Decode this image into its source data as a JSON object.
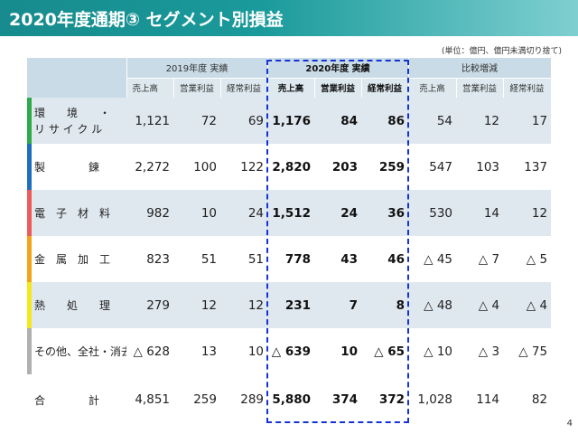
{
  "header": {
    "title": "2020年度通期③ セグメント別損益"
  },
  "unit_note": "(単位：億円、億円未満切り捨て)",
  "table": {
    "groups": [
      "2019年度 実績",
      "2020年度 実績",
      "比較増減"
    ],
    "sub_headers": [
      "売上高",
      "営業利益",
      "経常利益"
    ],
    "rows": [
      {
        "label_line1": "環　　境　　・",
        "label_line2": "リ サ イ ク ル",
        "color": "#2eaa4a",
        "prev": [
          "1,121",
          "72",
          "69"
        ],
        "cur": [
          "1,176",
          "84",
          "86"
        ],
        "diff": [
          "54",
          "12",
          "17"
        ]
      },
      {
        "label": "製　　　　鍊",
        "color": "#1f6fbf",
        "prev": [
          "2,272",
          "100",
          "122"
        ],
        "cur": [
          "2,820",
          "203",
          "259"
        ],
        "diff": [
          "547",
          "103",
          "137"
        ]
      },
      {
        "label": "電　子　材　料",
        "color": "#ee5a5a",
        "prev": [
          "982",
          "10",
          "24"
        ],
        "cur": [
          "1,512",
          "24",
          "36"
        ],
        "diff": [
          "530",
          "14",
          "12"
        ]
      },
      {
        "label": "金　属　加　工",
        "color": "#f2a31b",
        "prev": [
          "823",
          "51",
          "51"
        ],
        "cur": [
          "778",
          "43",
          "46"
        ],
        "diff": [
          "△ 45",
          "△ 7",
          "△ 5"
        ]
      },
      {
        "label": "熱　　処　　理",
        "color": "#f2e81b",
        "prev": [
          "279",
          "12",
          "12"
        ],
        "cur": [
          "231",
          "7",
          "8"
        ],
        "diff": [
          "△ 48",
          "△ 4",
          "△ 4"
        ]
      },
      {
        "label": "その他、全社・消去",
        "color": "#b0b0b0",
        "prev": [
          "△ 628",
          "13",
          "10"
        ],
        "cur": [
          "△ 639",
          "10",
          "△ 65"
        ],
        "diff": [
          "△ 10",
          "△ 3",
          "△ 75"
        ]
      },
      {
        "label": "合　　　　計",
        "color": "",
        "prev": [
          "4,851",
          "259",
          "289"
        ],
        "cur": [
          "5,880",
          "374",
          "372"
        ],
        "diff": [
          "1,028",
          "114",
          "82"
        ]
      }
    ]
  },
  "page_number": "4",
  "colors": {
    "accent": "#1a9a9b",
    "highlight_border": "#1433d6"
  }
}
